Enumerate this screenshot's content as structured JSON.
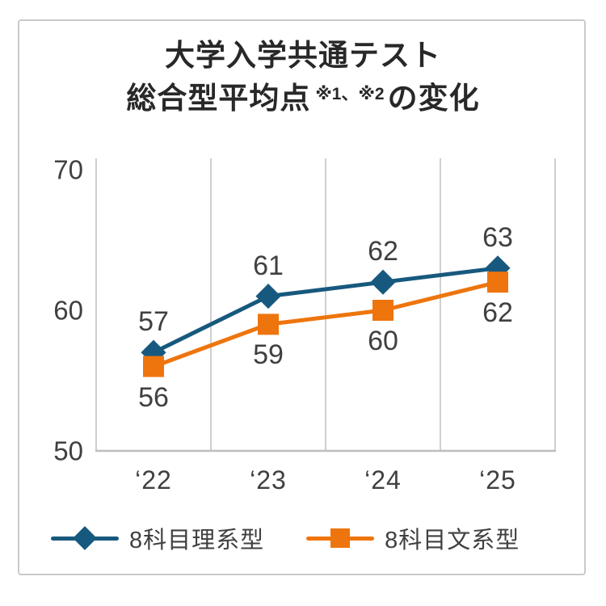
{
  "title": {
    "line1": "大学入学共通テスト",
    "line2_pre": "総合型平均点",
    "line2_sup": "※1、※2",
    "line2_post": "の変化"
  },
  "chart_data": {
    "type": "line",
    "title": "大学入学共通テスト 総合型平均点※1、※2の変化",
    "categories": [
      "‘22",
      "‘23",
      "‘24",
      "‘25"
    ],
    "series": [
      {
        "name": "8科目理系型",
        "marker": "diamond",
        "color": "#17597E",
        "values": [
          57,
          61,
          62,
          63
        ],
        "label_position": "above"
      },
      {
        "name": "8科目文系型",
        "marker": "square",
        "color": "#EE750D",
        "values": [
          56,
          59,
          60,
          62
        ],
        "label_position": "below"
      }
    ],
    "xlabel": "",
    "ylabel": "",
    "ylim": [
      50,
      70
    ],
    "yticks": [
      70,
      60,
      50
    ],
    "grid": "vertical-only",
    "gridline_color": "#cfcfcf",
    "axis_color": "#bdbdbd",
    "text_color": "#404040",
    "legend_position": "bottom"
  }
}
